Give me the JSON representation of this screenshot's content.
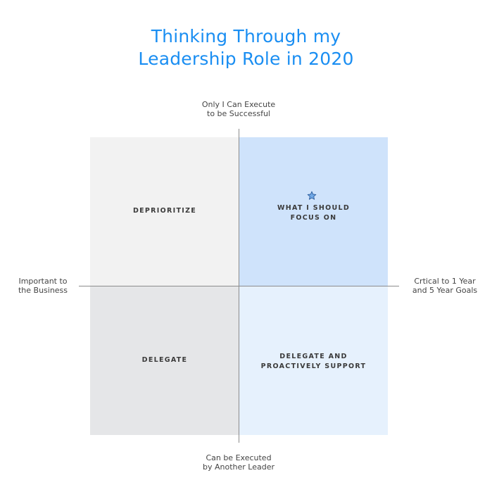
{
  "title": {
    "line1": "Thinking Through my",
    "line2": "Leadership Role in 2020"
  },
  "axes": {
    "top": {
      "line1": "Only I Can Execute",
      "line2": "to be Successful"
    },
    "bottom": {
      "line1": "Can be Executed",
      "line2": "by Another Leader"
    },
    "left": {
      "line1": "Important to",
      "line2": "the Business"
    },
    "right": {
      "line1": "Crtical to 1 Year",
      "line2": "and 5 Year Goals"
    }
  },
  "quadrants": {
    "top_left": {
      "line1": "DEPRIORITIZE",
      "color": "#f2f2f2"
    },
    "top_right": {
      "line1": "WHAT I SHOULD",
      "line2": "FOCUS ON",
      "icon": "star-icon",
      "color": "#cfe3fb"
    },
    "bottom_left": {
      "line1": "DELEGATE",
      "color": "#e5e6e8"
    },
    "bottom_right": {
      "line1": "DELEGATE AND",
      "line2": "PROACTIVELY SUPPORT",
      "color": "#e6f1fd"
    }
  },
  "colors": {
    "title": "#1a8ef2",
    "star_fill": "#6fa8e6",
    "star_stroke": "#2f5f9e"
  }
}
